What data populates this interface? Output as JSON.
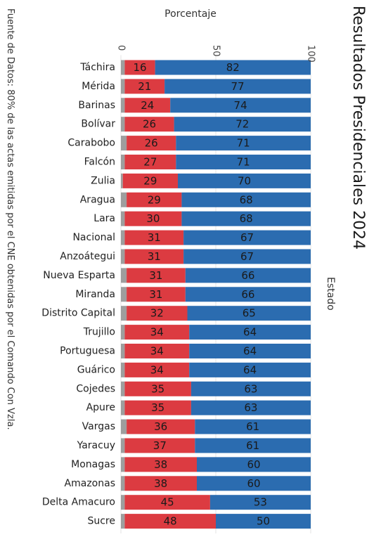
{
  "chart_data": {
    "type": "bar",
    "stacked": true,
    "orientation": "horizontal",
    "title": "Resultados Presidenciales 2024",
    "xlabel": "Porcentaje",
    "legend_title": "Estado",
    "source_note": "Fuente de Datos: 80% de las actas emitidas por el CNE obtenidas por el Comando Con Vzla.",
    "xlim": [
      0,
      100
    ],
    "x_ticks": [
      "0",
      "50",
      "100"
    ],
    "categories": [
      "Táchira",
      "Mérida",
      "Barinas",
      "Bolívar",
      "Carabobo",
      "Falcón",
      "Zulia",
      "Aragua",
      "Lara",
      "Nacional",
      "Anzoátegui",
      "Nueva Esparta",
      "Miranda",
      "Distrito Capital",
      "Trujillo",
      "Portuguesa",
      "Guárico",
      "Cojedes",
      "Apure",
      "Vargas",
      "Yaracuy",
      "Monagas",
      "Amazonas",
      "Delta Amacuro",
      "Sucre"
    ],
    "series": [
      {
        "color": "#9e9e9e",
        "values": [
          2,
          2,
          2,
          2,
          3,
          2,
          1,
          3,
          2,
          2,
          2,
          3,
          3,
          3,
          2,
          2,
          2,
          2,
          2,
          3,
          2,
          2,
          2,
          2,
          2
        ]
      },
      {
        "color": "#dc3b41",
        "values": [
          16,
          21,
          24,
          26,
          26,
          27,
          29,
          29,
          30,
          31,
          31,
          31,
          31,
          32,
          34,
          34,
          34,
          35,
          35,
          36,
          37,
          38,
          38,
          45,
          48
        ]
      },
      {
        "color": "#2b6cb0",
        "values": [
          82,
          77,
          74,
          72,
          71,
          71,
          70,
          68,
          68,
          67,
          67,
          66,
          66,
          65,
          64,
          64,
          64,
          63,
          63,
          61,
          61,
          60,
          60,
          53,
          50
        ]
      }
    ],
    "label_series": [
      1,
      2
    ],
    "grid": true
  }
}
